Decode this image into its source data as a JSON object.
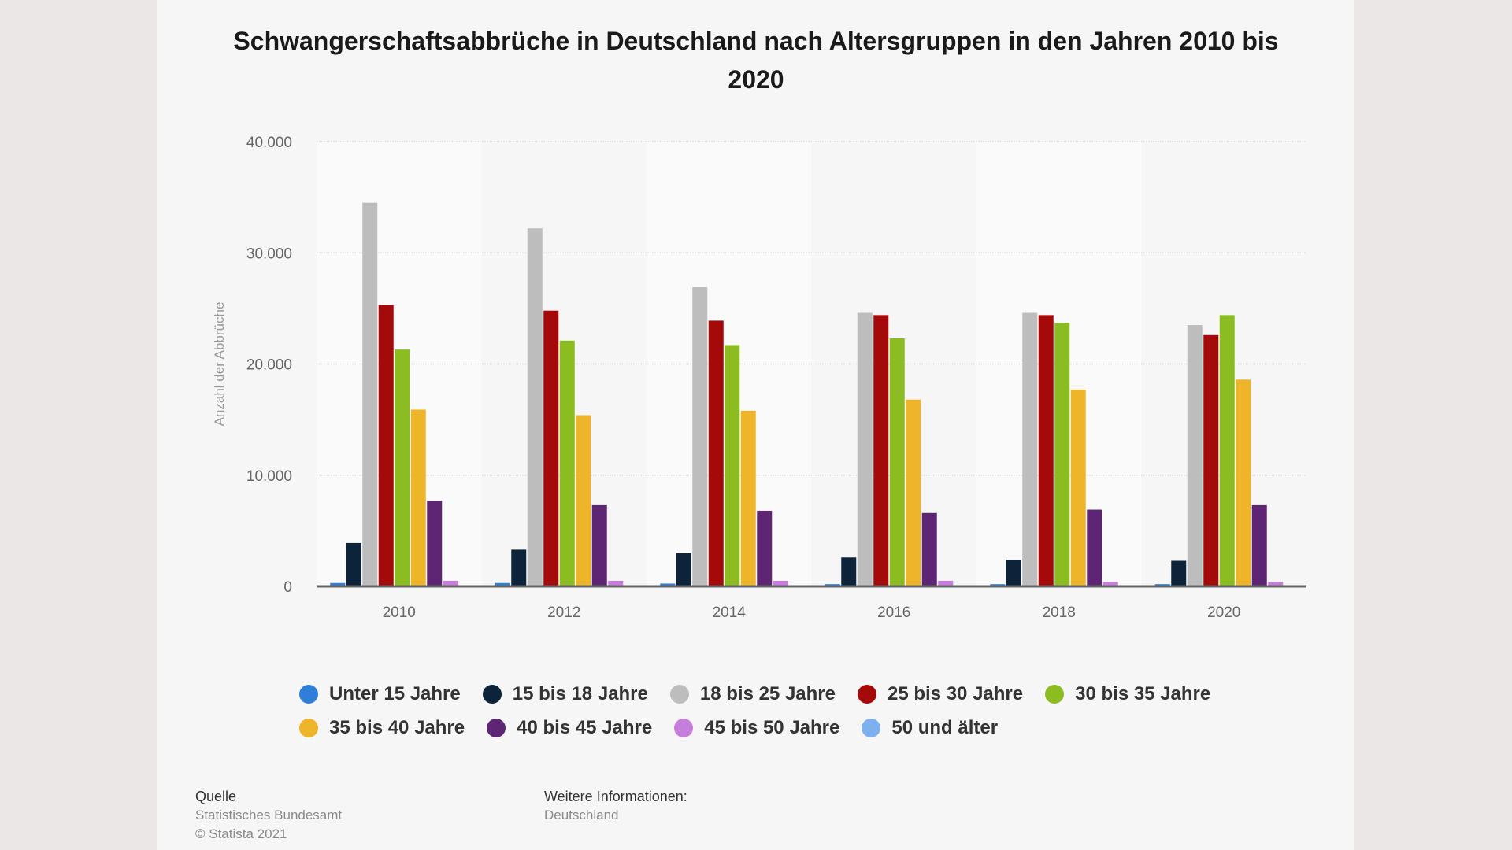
{
  "chart_data": {
    "type": "bar",
    "title": "Schwangerschaftsabbrüche in Deutschland nach Altersgruppen in den Jahren 2010 bis 2020",
    "ylabel": "Anzahl der Abbrüche",
    "xlabel": "",
    "ylim": [
      0,
      40000
    ],
    "yticks": [
      0,
      10000,
      20000,
      30000,
      40000
    ],
    "ytick_labels": [
      "0",
      "10.000",
      "20.000",
      "30.000",
      "40.000"
    ],
    "grid": true,
    "legend_position": "bottom",
    "categories": [
      "2010",
      "2012",
      "2014",
      "2016",
      "2018",
      "2020"
    ],
    "series": [
      {
        "name": "Unter 15 Jahre",
        "color": "#2f7ed8",
        "values": [
          300,
          300,
          250,
          200,
          200,
          200
        ]
      },
      {
        "name": "15 bis 18 Jahre",
        "color": "#0d233a",
        "values": [
          3900,
          3300,
          3000,
          2600,
          2400,
          2300
        ]
      },
      {
        "name": "18 bis 25 Jahre",
        "color": "#bdbdbd",
        "values": [
          34500,
          32200,
          26900,
          24600,
          24600,
          23500
        ]
      },
      {
        "name": "25 bis 30 Jahre",
        "color": "#a50a0a",
        "values": [
          25300,
          24800,
          23900,
          24400,
          24400,
          22600
        ]
      },
      {
        "name": "30 bis 35 Jahre",
        "color": "#8bbc21",
        "values": [
          21300,
          22100,
          21700,
          22300,
          23700,
          24400
        ]
      },
      {
        "name": "35 bis 40 Jahre",
        "color": "#efb52a",
        "values": [
          15900,
          15400,
          15800,
          16800,
          17700,
          18600
        ]
      },
      {
        "name": "40 bis 45 Jahre",
        "color": "#5e2575",
        "values": [
          7700,
          7300,
          6800,
          6600,
          6900,
          7300
        ]
      },
      {
        "name": "45 bis 50 Jahre",
        "color": "#c77ddb",
        "values": [
          500,
          500,
          500,
          500,
          400,
          400
        ]
      },
      {
        "name": "50 und älter",
        "color": "#7cb0ee",
        "values": [
          20,
          20,
          20,
          20,
          20,
          20
        ]
      }
    ]
  },
  "footer": {
    "source_label": "Quelle",
    "source": "Statistisches Bundesamt",
    "copyright": "© Statista 2021",
    "info_label": "Weitere Informationen:",
    "info": "Deutschland"
  }
}
